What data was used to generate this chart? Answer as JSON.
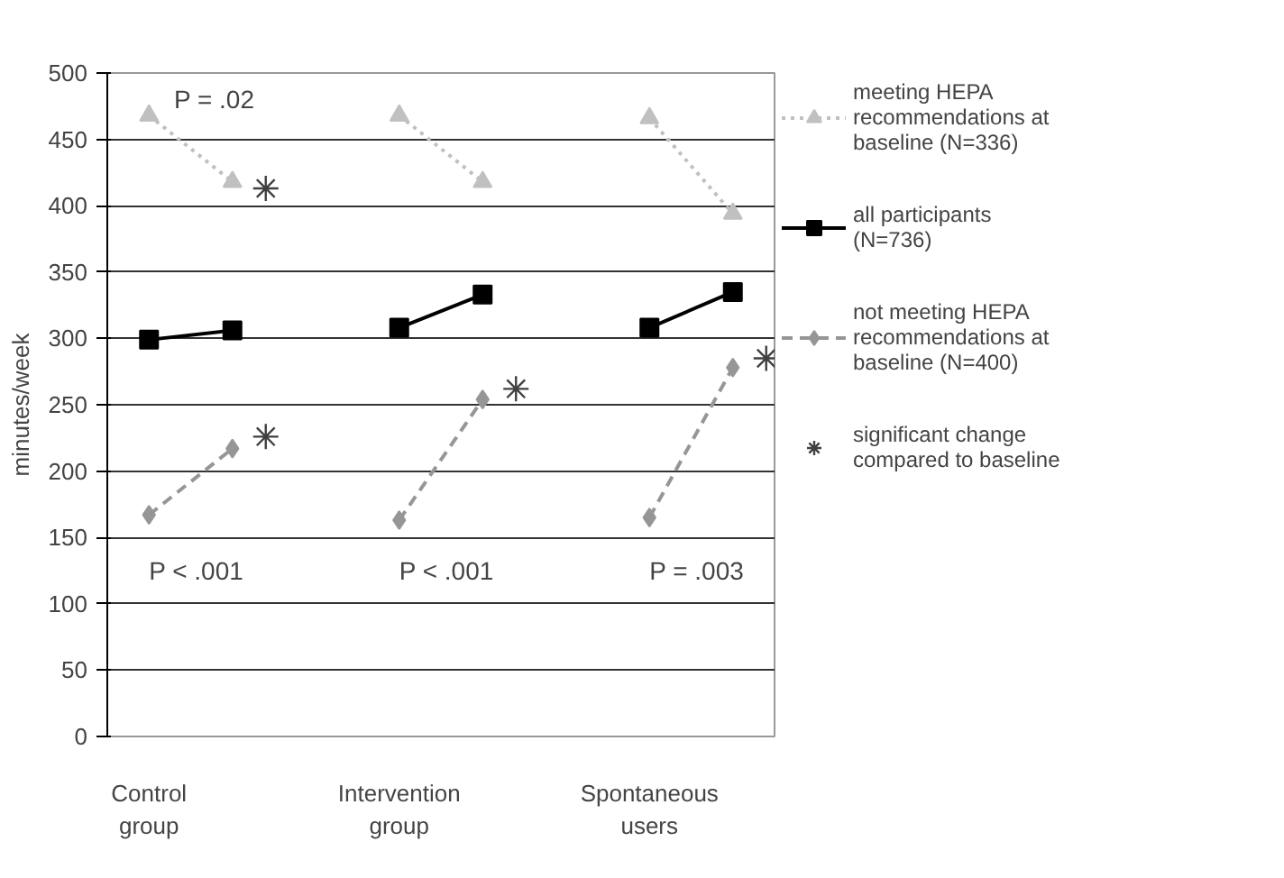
{
  "chart_data": {
    "type": "line",
    "ylabel": "minutes/week",
    "categories": [
      "Control group",
      null,
      null,
      "Intervention group",
      null,
      null,
      "Spontaneous users",
      null
    ],
    "series": [
      {
        "name": "meeting HEPA recommendations at baseline (N=336)",
        "color": "#c0c0c0",
        "marker": "triangle",
        "line_style": "dotted",
        "values": [
          468,
          418,
          null,
          468,
          418,
          null,
          466,
          394
        ]
      },
      {
        "name": "all participants (N=736)",
        "color": "#000000",
        "marker": "square",
        "line_style": "solid",
        "values": [
          299,
          306,
          null,
          308,
          333,
          null,
          308,
          335
        ]
      },
      {
        "name": "not meeting HEPA recommendations at baseline (N=400)",
        "color": "#969696",
        "marker": "diamond",
        "line_style": "dashed",
        "values": [
          167,
          217,
          null,
          163,
          254,
          null,
          165,
          278
        ]
      },
      {
        "name": "significant change compared to baseline",
        "type": "scatter",
        "color": "#404040",
        "marker": "cross",
        "values": [
          null,
          226,
          null,
          null,
          262,
          null,
          null,
          285
        ]
      },
      {
        "type": "scatter",
        "color": "#404040",
        "marker": "cross",
        "values": [
          null,
          413,
          null,
          null,
          null,
          null,
          null,
          null
        ]
      }
    ],
    "ylim": [
      0,
      500
    ],
    "yticks": [
      0,
      50,
      100,
      150,
      200,
      250,
      300,
      350,
      400,
      450,
      500
    ],
    "grid": "y",
    "legend": "right",
    "annotations": [
      "P = .02",
      "P < .001",
      "P < .001",
      "P = .003"
    ]
  }
}
